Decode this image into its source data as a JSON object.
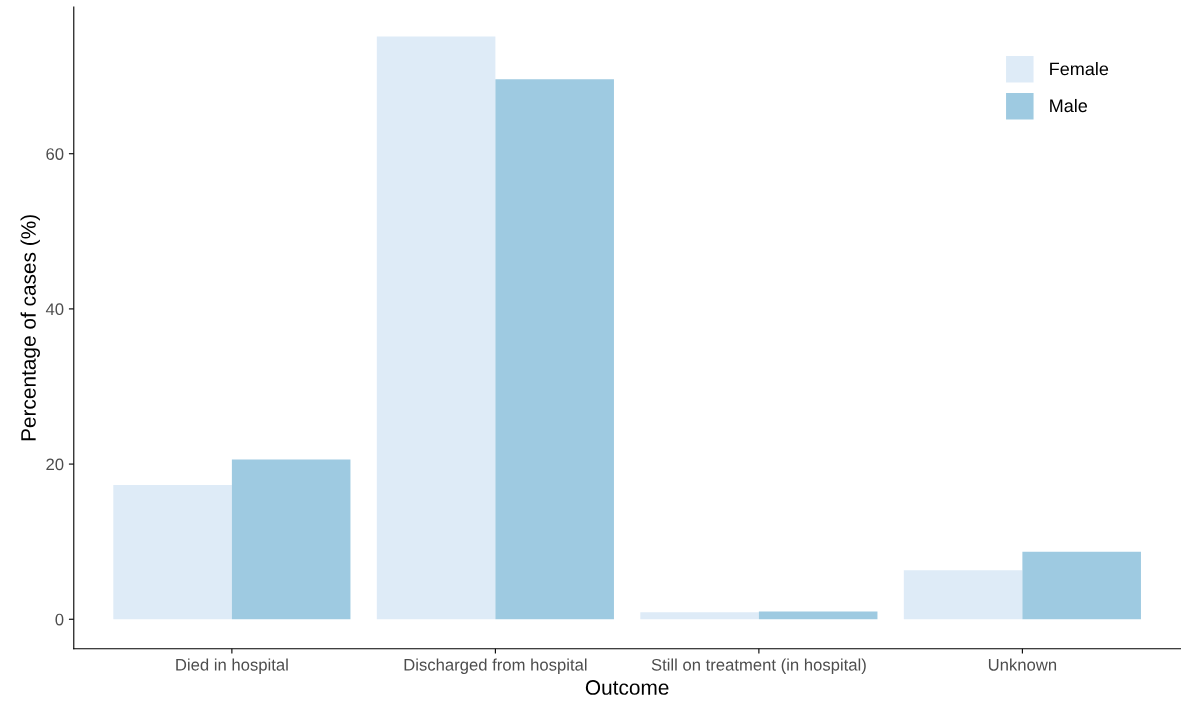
{
  "chart_data": {
    "type": "bar",
    "xlabel": "Outcome",
    "ylabel": "Percentage of cases (%)",
    "categories": [
      "Died in hospital",
      "Discharged from hospital",
      "Still on treatment (in hospital)",
      "Unknown"
    ],
    "series": [
      {
        "name": "Female",
        "color": "#deebf7",
        "values": [
          17.3,
          75.1,
          0.9,
          6.3
        ]
      },
      {
        "name": "Male",
        "color": "#9ecae1",
        "values": [
          20.6,
          69.6,
          1.0,
          8.7
        ]
      }
    ],
    "ylim": [
      -3.8,
      78.9
    ],
    "yticks": [
      0,
      20,
      40,
      60
    ],
    "grid": false,
    "legend": "top right"
  }
}
